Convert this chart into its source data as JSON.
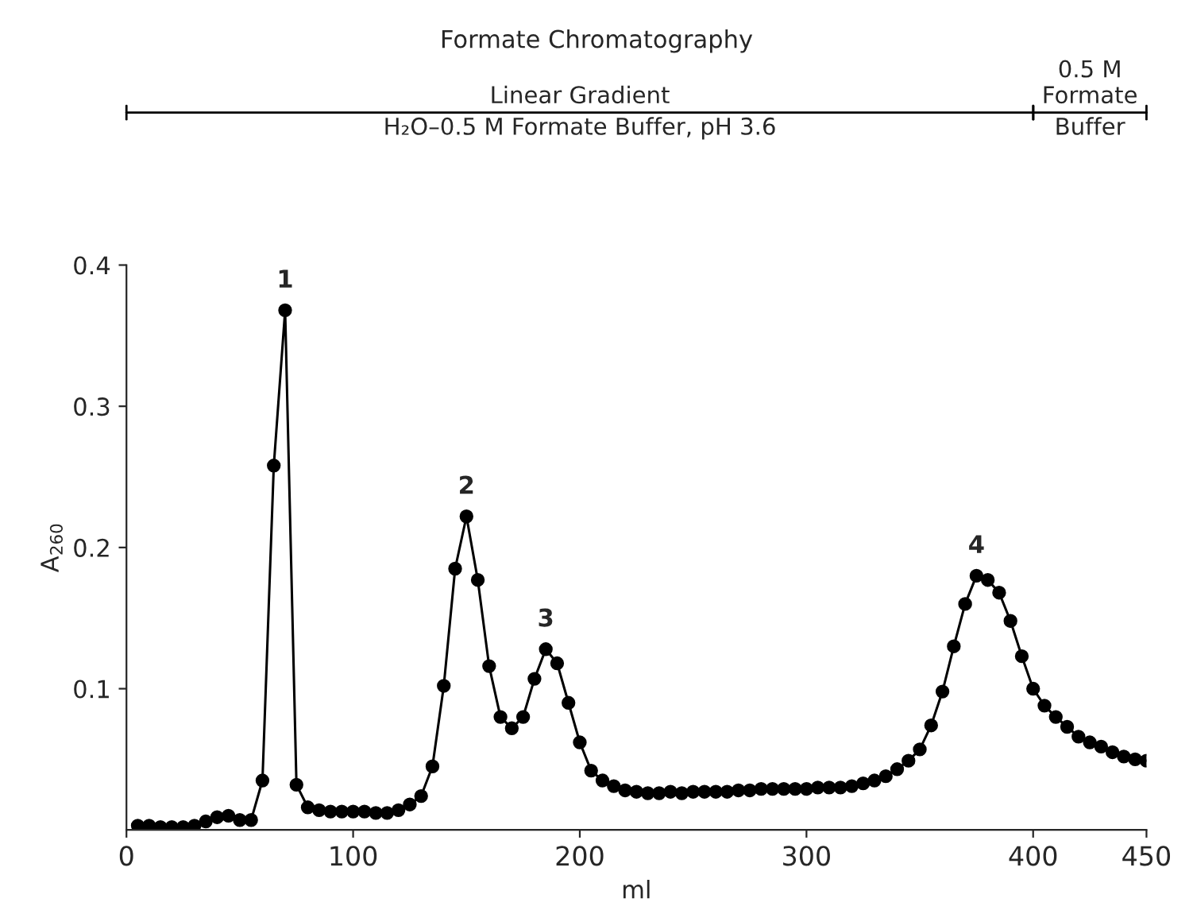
{
  "chart_data": {
    "type": "line",
    "title": "Formate Chromatography",
    "xlabel": "ml",
    "ylabel": "A$_{260}$",
    "x": [
      5,
      10,
      15,
      20,
      25,
      30,
      35,
      40,
      45,
      50,
      55,
      60,
      65,
      70,
      75,
      80,
      85,
      90,
      95,
      100,
      105,
      110,
      115,
      120,
      125,
      130,
      135,
      140,
      145,
      150,
      155,
      160,
      165,
      170,
      175,
      180,
      185,
      190,
      195,
      200,
      205,
      210,
      215,
      220,
      225,
      230,
      235,
      240,
      245,
      250,
      255,
      260,
      265,
      270,
      275,
      280,
      285,
      290,
      295,
      300,
      305,
      310,
      315,
      320,
      325,
      330,
      335,
      340,
      345,
      350,
      355,
      360,
      365,
      370,
      375,
      380,
      385,
      390,
      395,
      400,
      405,
      410,
      415,
      420,
      425,
      430,
      435,
      440,
      445,
      450
    ],
    "series": [
      {
        "color": "#000000",
        "values": [
          0.003,
          0.003,
          0.002,
          0.002,
          0.002,
          0.003,
          0.006,
          0.009,
          0.01,
          0.007,
          0.007,
          0.035,
          0.258,
          0.368,
          0.032,
          0.016,
          0.014,
          0.013,
          0.013,
          0.013,
          0.013,
          0.012,
          0.012,
          0.014,
          0.018,
          0.024,
          0.045,
          0.102,
          0.185,
          0.222,
          0.177,
          0.116,
          0.08,
          0.072,
          0.08,
          0.107,
          0.128,
          0.118,
          0.09,
          0.062,
          0.042,
          0.035,
          0.031,
          0.028,
          0.027,
          0.026,
          0.026,
          0.027,
          0.026,
          0.027,
          0.027,
          0.027,
          0.027,
          0.028,
          0.028,
          0.029,
          0.029,
          0.029,
          0.029,
          0.029,
          0.03,
          0.03,
          0.03,
          0.031,
          0.033,
          0.035,
          0.038,
          0.043,
          0.049,
          0.057,
          0.074,
          0.098,
          0.13,
          0.16,
          0.18,
          0.177,
          0.168,
          0.148,
          0.123,
          0.1,
          0.088,
          0.08,
          0.073,
          0.066,
          0.062,
          0.059,
          0.055,
          0.052,
          0.05,
          0.049
        ]
      }
    ],
    "xlim": [
      0,
      450
    ],
    "ylim": [
      0,
      0.4
    ],
    "xticks": [
      0,
      100,
      200,
      300,
      400,
      450
    ],
    "yticks": [
      {
        "value": 0.1,
        "label": "0.1"
      },
      {
        "value": 0.2,
        "label": "0.2"
      },
      {
        "value": 0.3,
        "label": "0.3"
      },
      {
        "value": 0.4,
        "label": "0.4"
      }
    ],
    "marker": "circle",
    "line_style": "solid",
    "annotations": [
      "Linear Gradient\nH₂O–0.5 M Formate Buffer, pH 3.6",
      "0.5 M\nFormate\nBuffer",
      {
        "text": "1",
        "x": 70,
        "y": 0.368
      },
      {
        "text": "2",
        "x": 150,
        "y": 0.222
      },
      {
        "text": "3",
        "x": 185,
        "y": 0.128
      },
      {
        "text": "4",
        "x": 375,
        "y": 0.18
      }
    ]
  }
}
